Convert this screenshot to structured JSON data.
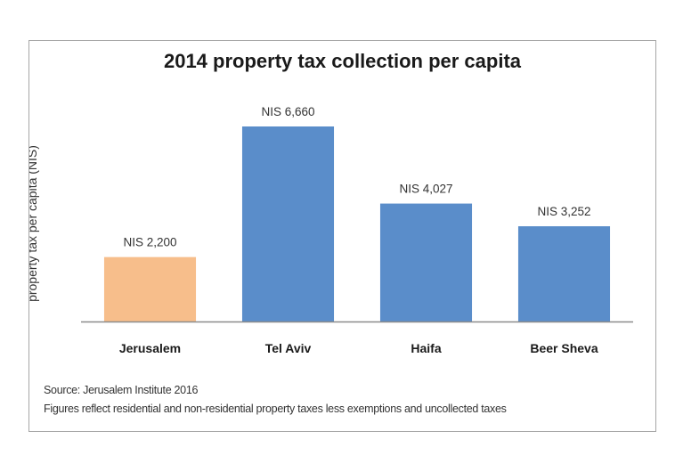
{
  "chart_data": {
    "type": "bar",
    "title": "2014 property tax collection per capita",
    "xlabel": "",
    "ylabel": "property tax per capita (NIS)",
    "categories": [
      "Jerusalem",
      "Tel Aviv",
      "Haifa",
      "Beer Sheva"
    ],
    "values": [
      2200,
      6660,
      4027,
      3252
    ],
    "data_labels": [
      "NIS 2,200",
      "NIS 6,660",
      "NIS 4,027",
      "NIS 3,252"
    ],
    "ylim": [
      0,
      6660
    ],
    "grid": false,
    "legend": "none",
    "colors": [
      "#F7BE8B",
      "#5A8DCA",
      "#5A8DCA",
      "#5A8DCA"
    ],
    "axis_color": "#8c8c8c"
  },
  "notes": {
    "source": "Source: Jerusalem Institute 2016",
    "footnote": "Figures reflect residential and non-residential property taxes less exemptions and uncollected taxes"
  }
}
